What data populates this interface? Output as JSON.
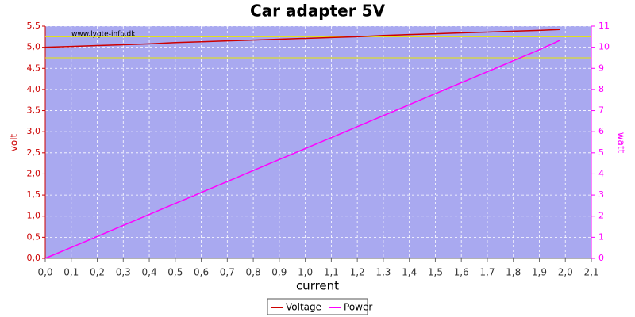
{
  "chart_data": {
    "type": "line",
    "title": "Car adapter 5V",
    "watermark": "www.lygte-info.dk",
    "x_label": "current",
    "y_label": "volt",
    "y2_label": "watt",
    "x": [
      0,
      0.1,
      0.2,
      0.3,
      0.4,
      0.5,
      0.6,
      0.7,
      0.8,
      0.9,
      1.0,
      1.1,
      1.2,
      1.3,
      1.4,
      1.5,
      1.6,
      1.7,
      1.8,
      1.9,
      1.98
    ],
    "series": [
      {
        "name": "Voltage",
        "color": "#cc0000",
        "axis": "y",
        "values": [
          5.0,
          5.02,
          5.04,
          5.06,
          5.08,
          5.11,
          5.13,
          5.15,
          5.17,
          5.19,
          5.21,
          5.23,
          5.25,
          5.28,
          5.3,
          5.32,
          5.34,
          5.36,
          5.38,
          5.4,
          5.42
        ]
      },
      {
        "name": "Power",
        "color": "#ff00ff",
        "axis": "y2",
        "values": [
          0,
          0.52,
          1.04,
          1.56,
          2.08,
          2.6,
          3.12,
          3.64,
          4.16,
          4.68,
          5.2,
          5.72,
          6.24,
          6.76,
          7.28,
          7.8,
          8.32,
          8.84,
          9.36,
          9.88,
          10.33
        ]
      }
    ],
    "reference_lines": [
      4.75,
      5.25
    ],
    "reference_color": "#e8e800",
    "xlim": [
      0,
      2.1
    ],
    "xticks": [
      {
        "value": 0,
        "label": "0,0"
      },
      {
        "value": 0.1,
        "label": "0,1"
      },
      {
        "value": 0.2,
        "label": "0,2"
      },
      {
        "value": 0.3,
        "label": "0,3"
      },
      {
        "value": 0.4,
        "label": "0,4"
      },
      {
        "value": 0.5,
        "label": "0,5"
      },
      {
        "value": 0.6,
        "label": "0,6"
      },
      {
        "value": 0.7,
        "label": "0,7"
      },
      {
        "value": 0.8,
        "label": "0,8"
      },
      {
        "value": 0.9,
        "label": "0,9"
      },
      {
        "value": 1.0,
        "label": "1,0"
      },
      {
        "value": 1.1,
        "label": "1,1"
      },
      {
        "value": 1.2,
        "label": "1,2"
      },
      {
        "value": 1.3,
        "label": "1,3"
      },
      {
        "value": 1.4,
        "label": "1,4"
      },
      {
        "value": 1.5,
        "label": "1,5"
      },
      {
        "value": 1.6,
        "label": "1,6"
      },
      {
        "value": 1.7,
        "label": "1,7"
      },
      {
        "value": 1.8,
        "label": "1,8"
      },
      {
        "value": 1.9,
        "label": "1,9"
      },
      {
        "value": 2.0,
        "label": "2,0"
      },
      {
        "value": 2.1,
        "label": "2,1"
      }
    ],
    "ylim": [
      0,
      5.5
    ],
    "yticks": [
      {
        "value": 0,
        "label": "0,0"
      },
      {
        "value": 0.5,
        "label": "0,5"
      },
      {
        "value": 1.0,
        "label": "1,0"
      },
      {
        "value": 1.5,
        "label": "1,5"
      },
      {
        "value": 2.0,
        "label": "2,0"
      },
      {
        "value": 2.5,
        "label": "2,5"
      },
      {
        "value": 3.0,
        "label": "3,0"
      },
      {
        "value": 3.5,
        "label": "3,5"
      },
      {
        "value": 4.0,
        "label": "4,0"
      },
      {
        "value": 4.5,
        "label": "4,5"
      },
      {
        "value": 5.0,
        "label": "5,0"
      },
      {
        "value": 5.5,
        "label": "5,5"
      }
    ],
    "y2lim": [
      0,
      11
    ],
    "y2ticks": [
      0,
      1,
      2,
      3,
      4,
      5,
      6,
      7,
      8,
      9,
      10,
      11
    ],
    "grid": true,
    "legend": "bottom",
    "plot_background": "#a9a9f0"
  }
}
